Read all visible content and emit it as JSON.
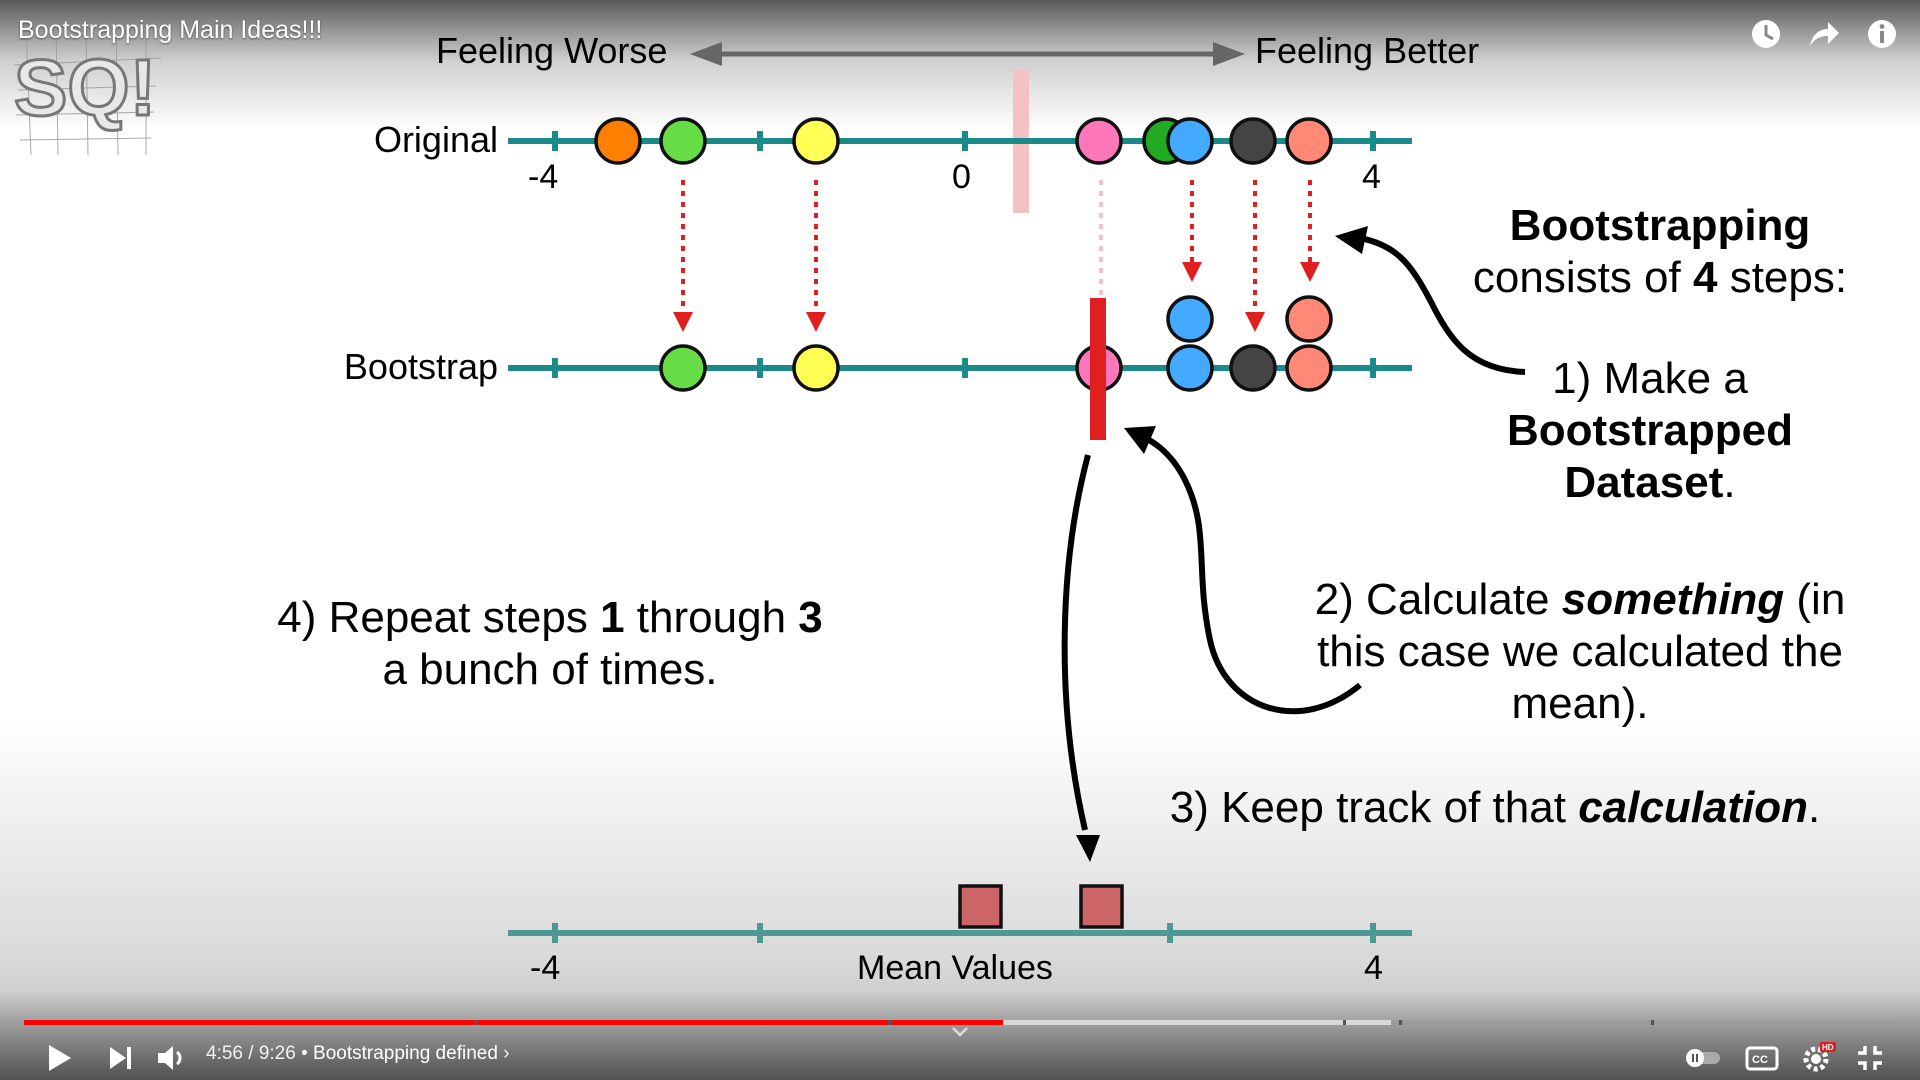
{
  "video": {
    "title": "Bootstrapping Main Ideas!!!",
    "time_current": "4:56",
    "time_total": "9:26",
    "time_separator": "/",
    "chapter": "Bootstrapping defined",
    "progress_fraction": 0.523,
    "buffered_fraction": 0.73
  },
  "slide": {
    "feeling_worse": "Feeling Worse",
    "feeling_better": "Feeling Better",
    "row_original": "Original",
    "row_bootstrap": "Bootstrap",
    "tick_neg4": "-4",
    "tick_0": "0",
    "tick_4": "4",
    "mean_axis_label": "Mean Values",
    "mean_tick_neg4": "-4",
    "mean_tick_4": "4",
    "steps_heading_bold": "Bootstrapping",
    "steps_heading_pre": "consists of ",
    "steps_heading_num": "4",
    "steps_heading_post": " steps:",
    "step1_line1": "1) Make a",
    "step1_line2": "Bootstrapped",
    "step1_line3": "Dataset",
    "step1_period": ".",
    "step2_pre": "2) Calculate ",
    "step2_em": "something",
    "step2_post": " (in",
    "step2_line2": "this case we calculated the",
    "step2_line3": "mean).",
    "step3_pre": "3) Keep track of that ",
    "step3_em": "calculation",
    "step3_post": ".",
    "step4_pre": "4) Repeat steps ",
    "step4_b1": "1",
    "step4_mid": " through ",
    "step4_b2": "3",
    "step4_line2": "a bunch of times."
  },
  "colors": {
    "axis": "#1a8a8a",
    "mean_axis": "#4d9a94",
    "red": "#e02020",
    "progress_played": "#ff0000",
    "progress_buffered": "#d8d8d8",
    "progress_rest": "#9a9a9a"
  },
  "icons": [
    "watch-later-icon",
    "share-icon",
    "info-icon",
    "play-icon",
    "next-icon",
    "volume-icon",
    "chevron-down-icon",
    "autoplay-toggle-icon",
    "captions-icon",
    "settings-icon",
    "hd-badge-icon",
    "exit-fullscreen-icon"
  ]
}
